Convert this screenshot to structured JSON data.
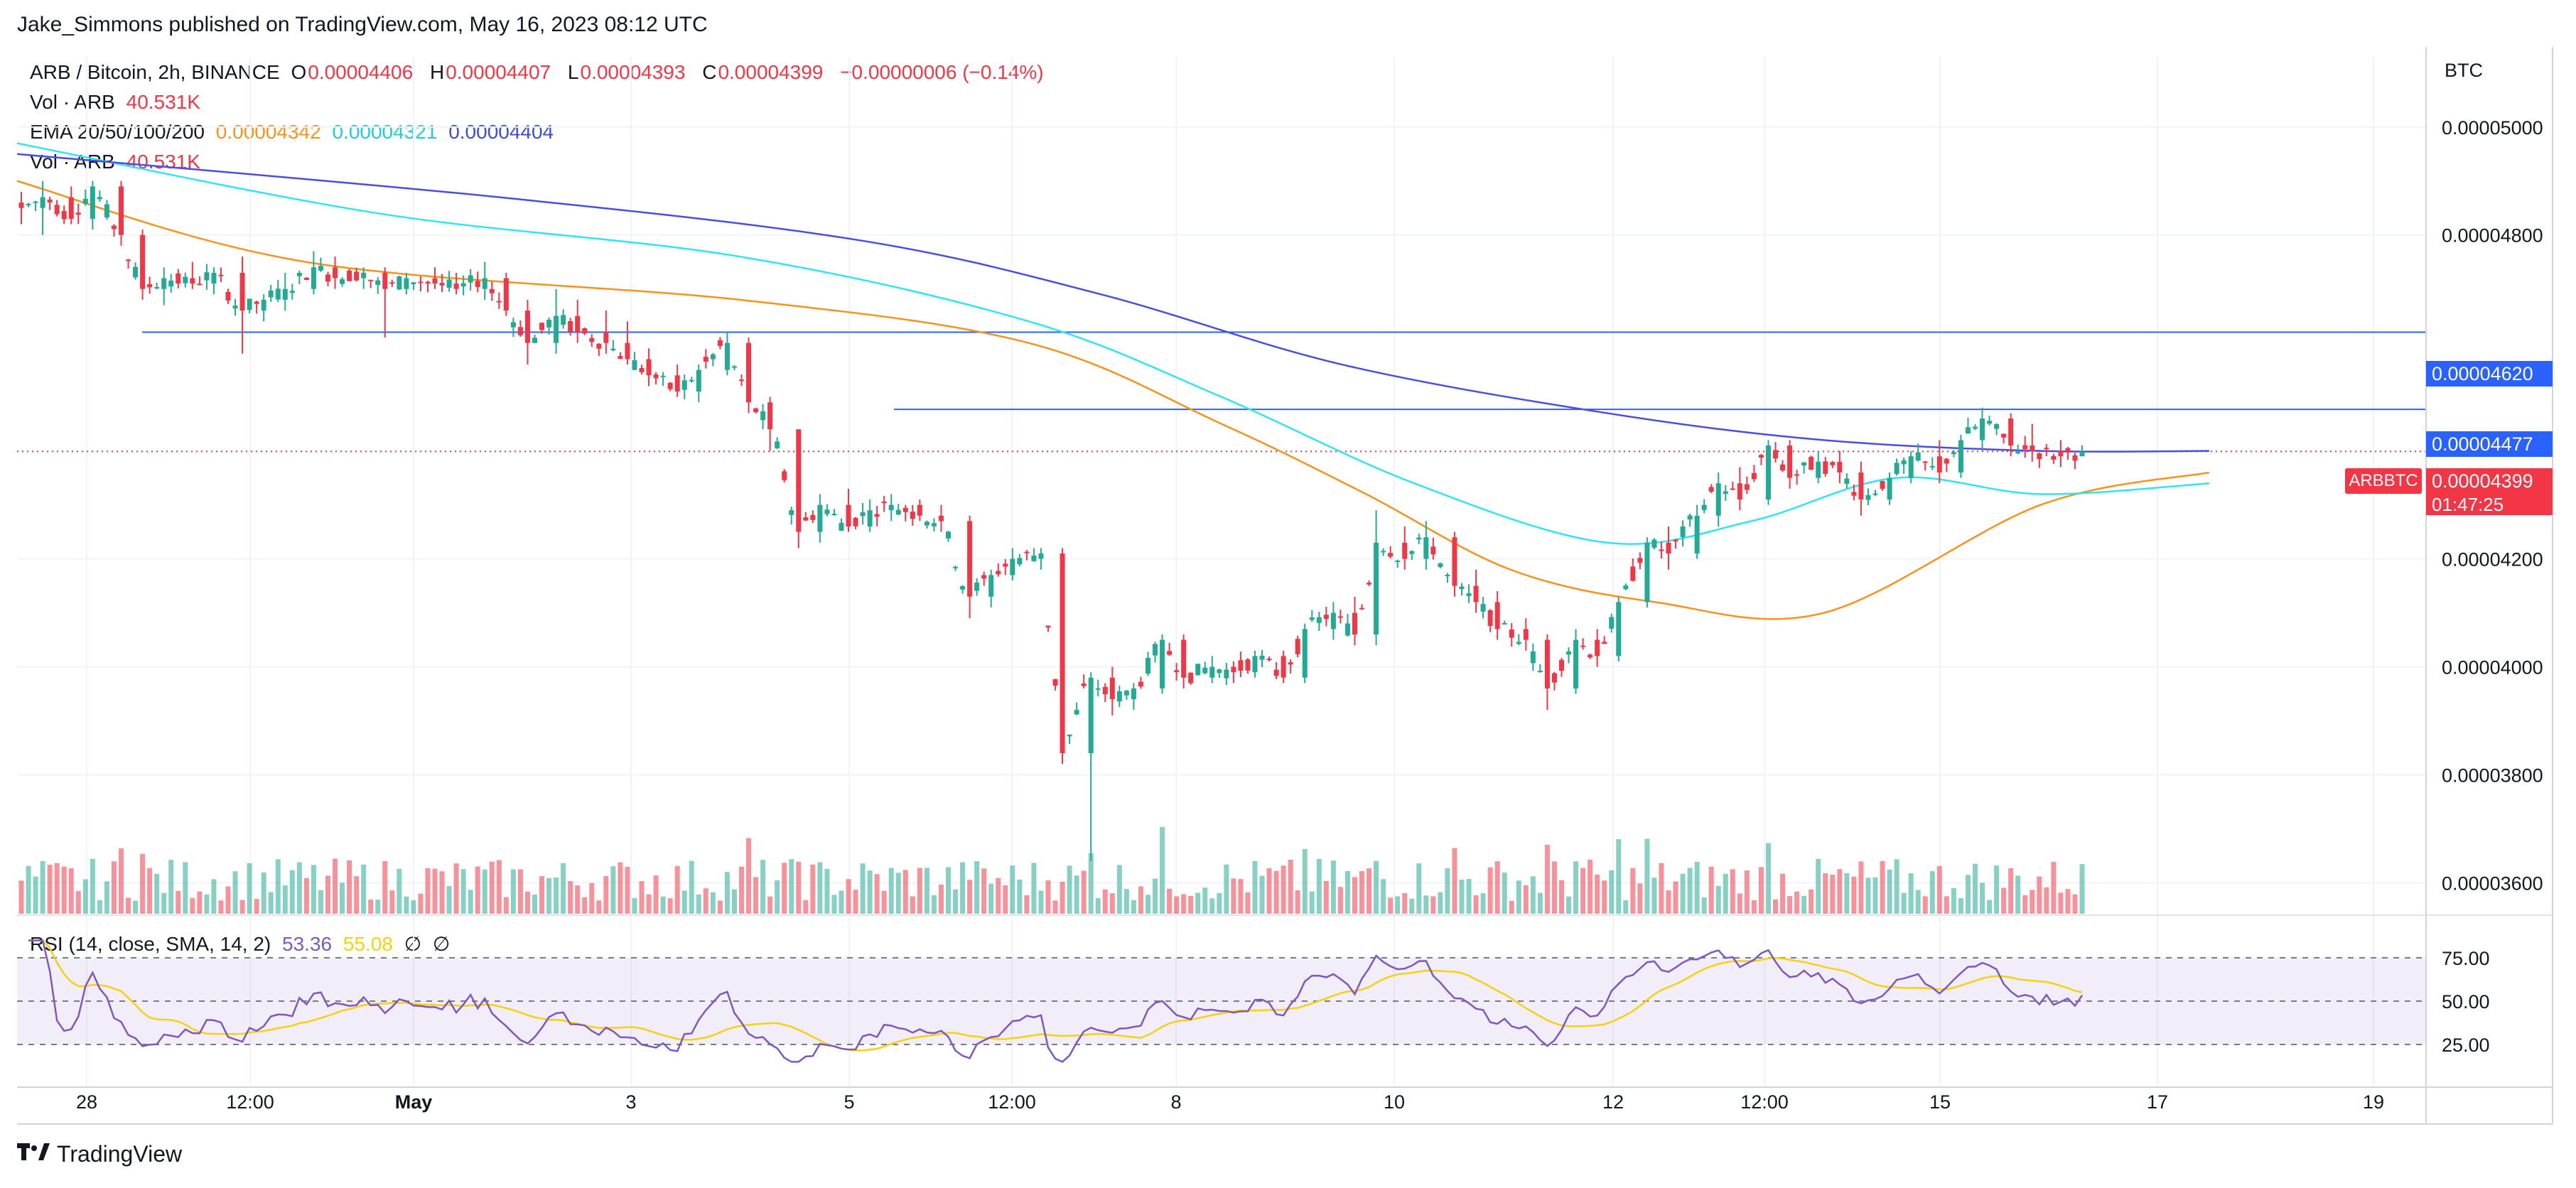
{
  "publisher": "Jake_Simmons published on TradingView.com, May 16, 2023 08:12 UTC",
  "legend": {
    "symbol": "ARB / Bitcoin, 2h, BINANCE",
    "open_key": "O",
    "open": "0.00004406",
    "high_key": "H",
    "high": "0.00004407",
    "low_key": "L",
    "low": "0.00004393",
    "close_key": "C",
    "close": "0.00004399",
    "change": "−0.00000006 (−0.14%)",
    "vol_label": "Vol · ARB",
    "vol_value": "40.531K",
    "ema_label": "EMA 20/50/100/200",
    "ema_20": "0.00004342",
    "ema_50": "0.00004321",
    "ema_100": "0.00004404",
    "vol2_label": "Vol · ARB",
    "vol2_value": "40.531K",
    "rsi_label": "RSI (14, close, SMA, 14, 2)",
    "rsi_value": "53.36",
    "rsi_sma": "55.08",
    "rsi_icon_a": "∅",
    "rsi_icon_b": "∅"
  },
  "price_axis_unit": "BTC",
  "price_tags": {
    "resistance_1": "0.00004620",
    "resistance_2": "0.00004477",
    "current": "0.00004399",
    "current_symbol": "ARBBTC",
    "countdown": "01:47:25"
  },
  "footer": {
    "brand": "TradingView",
    "logo_icon": "tradingview-logo-icon"
  },
  "colors": {
    "up": "#22ab94",
    "down": "#f23645",
    "ema20": "#f7931a",
    "ema50": "#2ee6f0",
    "ema200": "#4a4ee0",
    "hline": "#2962ff",
    "rsi": "#7e57c2",
    "rsi_sma": "#f5d20b",
    "rsi_band": "#7e57c2"
  },
  "chart_data": {
    "type": "candlestick",
    "interval": "2h",
    "y_axis": {
      "ticks": [
        "0.00005000",
        "0.00004800",
        "0.00004200",
        "0.00004000",
        "0.00003800",
        "0.00003600"
      ],
      "range": [
        3.54e-05,
        5.13e-05
      ]
    },
    "x_axis": {
      "ticks": [
        "28",
        "12:00",
        "May",
        "3",
        "5",
        "12:00",
        "8",
        "10",
        "12",
        "12:00",
        "15",
        "17",
        "19"
      ]
    },
    "horizontal_lines": [
      4.62e-05,
      4.477e-05
    ],
    "ohlc_anchors": [
      [
        4.86e-05,
        4.88e-05,
        4.82e-05,
        4.85e-05
      ],
      [
        4.85e-05,
        4.9e-05,
        4.8e-05,
        4.87e-05
      ],
      [
        4.87e-05,
        4.89e-05,
        4.82e-05,
        4.83e-05
      ],
      [
        4.83e-05,
        4.9e-05,
        4.81e-05,
        4.89e-05
      ],
      [
        4.89e-05,
        4.9e-05,
        4.78e-05,
        4.8e-05
      ],
      [
        4.8e-05,
        4.81e-05,
        4.68e-05,
        4.7e-05
      ],
      [
        4.7e-05,
        4.74e-05,
        4.67e-05,
        4.72e-05
      ],
      [
        4.72e-05,
        4.75e-05,
        4.7e-05,
        4.71e-05
      ],
      [
        4.71e-05,
        4.74e-05,
        4.69e-05,
        4.73e-05
      ],
      [
        4.73e-05,
        4.76e-05,
        4.58e-05,
        4.66e-05
      ],
      [
        4.66e-05,
        4.69e-05,
        4.64e-05,
        4.68e-05
      ],
      [
        4.68e-05,
        4.73e-05,
        4.66e-05,
        4.7e-05
      ],
      [
        4.7e-05,
        4.77e-05,
        4.69e-05,
        4.74e-05
      ],
      [
        4.74e-05,
        4.76e-05,
        4.7e-05,
        4.72e-05
      ],
      [
        4.72e-05,
        4.74e-05,
        4.7e-05,
        4.73e-05
      ],
      [
        4.73e-05,
        4.74e-05,
        4.61e-05,
        4.7e-05
      ],
      [
        4.7e-05,
        4.73e-05,
        4.69e-05,
        4.72e-05
      ],
      [
        4.72e-05,
        4.74e-05,
        4.7e-05,
        4.71e-05
      ],
      [
        4.71e-05,
        4.73e-05,
        4.69e-05,
        4.7e-05
      ],
      [
        4.7e-05,
        4.75e-05,
        4.68e-05,
        4.72e-05
      ],
      [
        4.72e-05,
        4.73e-05,
        4.65e-05,
        4.66e-05
      ],
      [
        4.66e-05,
        4.68e-05,
        4.56e-05,
        4.6e-05
      ],
      [
        4.6e-05,
        4.7e-05,
        4.58e-05,
        4.65e-05
      ],
      [
        4.65e-05,
        4.68e-05,
        4.6e-05,
        4.62e-05
      ],
      [
        4.62e-05,
        4.66e-05,
        4.58e-05,
        4.6e-05
      ],
      [
        4.6e-05,
        4.64e-05,
        4.56e-05,
        4.57e-05
      ],
      [
        4.57e-05,
        4.59e-05,
        4.52e-05,
        4.54e-05
      ],
      [
        4.54e-05,
        4.56e-05,
        4.5e-05,
        4.51e-05
      ],
      [
        4.51e-05,
        4.56e-05,
        4.49e-05,
        4.55e-05
      ],
      [
        4.55e-05,
        4.62e-05,
        4.54e-05,
        4.6e-05
      ],
      [
        4.6e-05,
        4.61e-05,
        4.47e-05,
        4.49e-05
      ],
      [
        4.49e-05,
        4.5e-05,
        4.4e-05,
        4.44e-05
      ],
      [
        4.44e-05,
        4.44e-05,
        4.22e-05,
        4.25e-05
      ],
      [
        4.25e-05,
        4.32e-05,
        4.23e-05,
        4.3e-05
      ],
      [
        4.3e-05,
        4.33e-05,
        4.25e-05,
        4.26e-05
      ],
      [
        4.26e-05,
        4.31e-05,
        4.25e-05,
        4.29e-05
      ],
      [
        4.29e-05,
        4.32e-05,
        4.27e-05,
        4.3e-05
      ],
      [
        4.3e-05,
        4.31e-05,
        4.27e-05,
        4.28e-05
      ],
      [
        4.28e-05,
        4.3e-05,
        4.25e-05,
        4.27e-05
      ],
      [
        4.27e-05,
        4.28e-05,
        4.09e-05,
        4.13e-05
      ],
      [
        4.13e-05,
        4.18e-05,
        4.11e-05,
        4.17e-05
      ],
      [
        4.17e-05,
        4.22e-05,
        4.16e-05,
        4.2e-05
      ],
      [
        4.2e-05,
        4.22e-05,
        4.18e-05,
        4.21e-05
      ],
      [
        4.21e-05,
        4.22e-05,
        3.82e-05,
        3.84e-05
      ],
      [
        3.84e-05,
        3.99e-05,
        3.64e-05,
        3.98e-05
      ],
      [
        3.98e-05,
        4e-05,
        3.91e-05,
        3.94e-05
      ],
      [
        3.94e-05,
        3.97e-05,
        3.92e-05,
        3.96e-05
      ],
      [
        3.96e-05,
        4.06e-05,
        3.95e-05,
        4.05e-05
      ],
      [
        4.05e-05,
        4.06e-05,
        3.96e-05,
        3.98e-05
      ],
      [
        3.98e-05,
        4.02e-05,
        3.97e-05,
        4e-05
      ],
      [
        4e-05,
        4.01e-05,
        3.97e-05,
        3.99e-05
      ],
      [
        3.99e-05,
        4.03e-05,
        3.98e-05,
        4.02e-05
      ],
      [
        4.02e-05,
        4.03e-05,
        3.97e-05,
        3.98e-05
      ],
      [
        3.98e-05,
        4.08e-05,
        3.97e-05,
        4.07e-05
      ],
      [
        4.07e-05,
        4.12e-05,
        4.05e-05,
        4.1e-05
      ],
      [
        4.1e-05,
        4.13e-05,
        4.04e-05,
        4.06e-05
      ],
      [
        4.06e-05,
        4.29e-05,
        4.04e-05,
        4.23e-05
      ],
      [
        4.23e-05,
        4.26e-05,
        4.18e-05,
        4.2e-05
      ],
      [
        4.2e-05,
        4.27e-05,
        4.18e-05,
        4.24e-05
      ],
      [
        4.24e-05,
        4.25e-05,
        4.13e-05,
        4.15e-05
      ],
      [
        4.15e-05,
        4.18e-05,
        4.1e-05,
        4.12e-05
      ],
      [
        4.12e-05,
        4.14e-05,
        4.05e-05,
        4.07e-05
      ],
      [
        4.07e-05,
        4.09e-05,
        4.03e-05,
        4.05e-05
      ],
      [
        4.05e-05,
        4.06e-05,
        3.92e-05,
        3.96e-05
      ],
      [
        3.96e-05,
        4.07e-05,
        3.95e-05,
        4.05e-05
      ],
      [
        4.05e-05,
        4.07e-05,
        4e-05,
        4.02e-05
      ],
      [
        4.02e-05,
        4.13e-05,
        4.01e-05,
        4.12e-05
      ],
      [
        4.12e-05,
        4.24e-05,
        4.11e-05,
        4.23e-05
      ],
      [
        4.23e-05,
        4.26e-05,
        4.18e-05,
        4.21e-05
      ],
      [
        4.21e-05,
        4.3e-05,
        4.2e-05,
        4.28e-05
      ],
      [
        4.28e-05,
        4.36e-05,
        4.26e-05,
        4.34e-05
      ],
      [
        4.34e-05,
        4.37e-05,
        4.29e-05,
        4.31e-05
      ],
      [
        4.31e-05,
        4.42e-05,
        4.3e-05,
        4.41e-05
      ],
      [
        4.41e-05,
        4.42e-05,
        4.33e-05,
        4.35e-05
      ],
      [
        4.35e-05,
        4.4e-05,
        4.34e-05,
        4.38e-05
      ],
      [
        4.38e-05,
        4.4e-05,
        4.34e-05,
        4.36e-05
      ],
      [
        4.36e-05,
        4.38e-05,
        4.28e-05,
        4.31e-05
      ],
      [
        4.31e-05,
        4.36e-05,
        4.3e-05,
        4.35e-05
      ],
      [
        4.35e-05,
        4.4e-05,
        4.34e-05,
        4.39e-05
      ],
      [
        4.39e-05,
        4.42e-05,
        4.34e-05,
        4.36e-05
      ],
      [
        4.36e-05,
        4.43e-05,
        4.35e-05,
        4.42e-05
      ],
      [
        4.42e-05,
        4.48e-05,
        4.4e-05,
        4.46e-05
      ],
      [
        4.46e-05,
        4.47e-05,
        4.39e-05,
        4.41e-05
      ],
      [
        4.41e-05,
        4.45e-05,
        4.38e-05,
        4.4e-05
      ],
      [
        4.4e-05,
        4.42e-05,
        4.37e-05,
        4.39e-05
      ],
      [
        4.39e-05,
        4.41e-05,
        4.39e-05,
        4.399e-05
      ]
    ],
    "ema_anchors": {
      "ema20": [
        [
          0,
          4.9e-05
        ],
        [
          0.12,
          4.75e-05
        ],
        [
          0.3,
          4.68e-05
        ],
        [
          0.42,
          4.6e-05
        ],
        [
          0.5,
          4.45e-05
        ],
        [
          0.56,
          4.32e-05
        ],
        [
          0.62,
          4.18e-05
        ],
        [
          0.68,
          4.12e-05
        ],
        [
          0.75,
          4.1e-05
        ],
        [
          0.84,
          4.3e-05
        ],
        [
          0.91,
          4.36e-05
        ]
      ],
      "ema50": [
        [
          0,
          4.97e-05
        ],
        [
          0.15,
          4.84e-05
        ],
        [
          0.3,
          4.76e-05
        ],
        [
          0.42,
          4.64e-05
        ],
        [
          0.5,
          4.5e-05
        ],
        [
          0.58,
          4.34e-05
        ],
        [
          0.66,
          4.23e-05
        ],
        [
          0.72,
          4.27e-05
        ],
        [
          0.78,
          4.35e-05
        ],
        [
          0.84,
          4.32e-05
        ],
        [
          0.91,
          4.34e-05
        ]
      ],
      "ema200": [
        [
          0,
          4.95e-05
        ],
        [
          0.2,
          4.87e-05
        ],
        [
          0.35,
          4.79e-05
        ],
        [
          0.45,
          4.69e-05
        ],
        [
          0.55,
          4.56e-05
        ],
        [
          0.66,
          4.47e-05
        ],
        [
          0.75,
          4.42e-05
        ],
        [
          0.84,
          4.4e-05
        ],
        [
          0.91,
          4.4e-05
        ]
      ]
    },
    "rsi": {
      "levels": [
        "75.00",
        "50.00",
        "25.00"
      ],
      "current": 53.36,
      "sma": 55.08
    },
    "volume": {
      "current": "40.531K"
    }
  }
}
